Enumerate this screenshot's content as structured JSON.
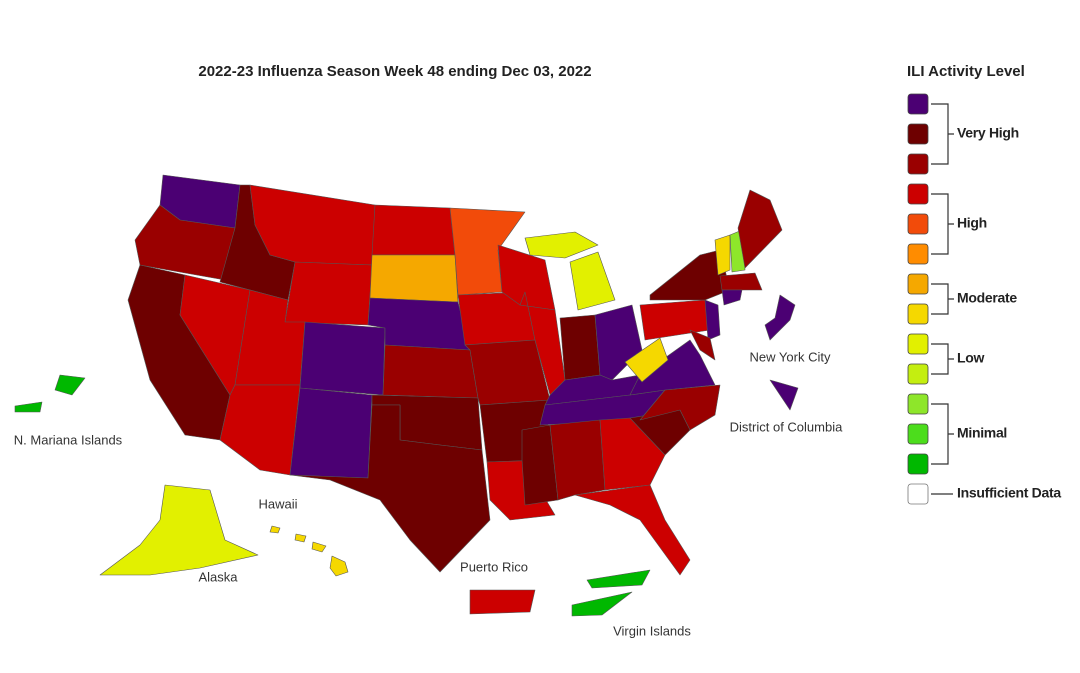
{
  "title": "2022-23 Influenza Season Week 48 ending Dec 03, 2022",
  "legend": {
    "title": "ILI Activity Level",
    "groups": [
      {
        "label": "Very High",
        "colors": [
          "#4b0073",
          "#6e0000",
          "#9a0000"
        ]
      },
      {
        "label": "High",
        "colors": [
          "#cc0000",
          "#f24b0a",
          "#ff8c00"
        ]
      },
      {
        "label": "Moderate",
        "colors": [
          "#f5a800",
          "#f5d800"
        ]
      },
      {
        "label": "Low",
        "colors": [
          "#e2f000",
          "#c4ee10"
        ]
      },
      {
        "label": "Minimal",
        "colors": [
          "#8ee62a",
          "#4cdd1c",
          "#00b800"
        ]
      }
    ],
    "insufficient": {
      "label": "Insufficient Data",
      "color": "#ffffff"
    }
  },
  "labels": {
    "nyc": "New York City",
    "dc": "District of Columbia",
    "nmi": "N. Mariana Islands",
    "hawaii": "Hawaii",
    "alaska": "Alaska",
    "puerto_rico": "Puerto Rico",
    "virgin_islands": "Virgin Islands"
  }
}
